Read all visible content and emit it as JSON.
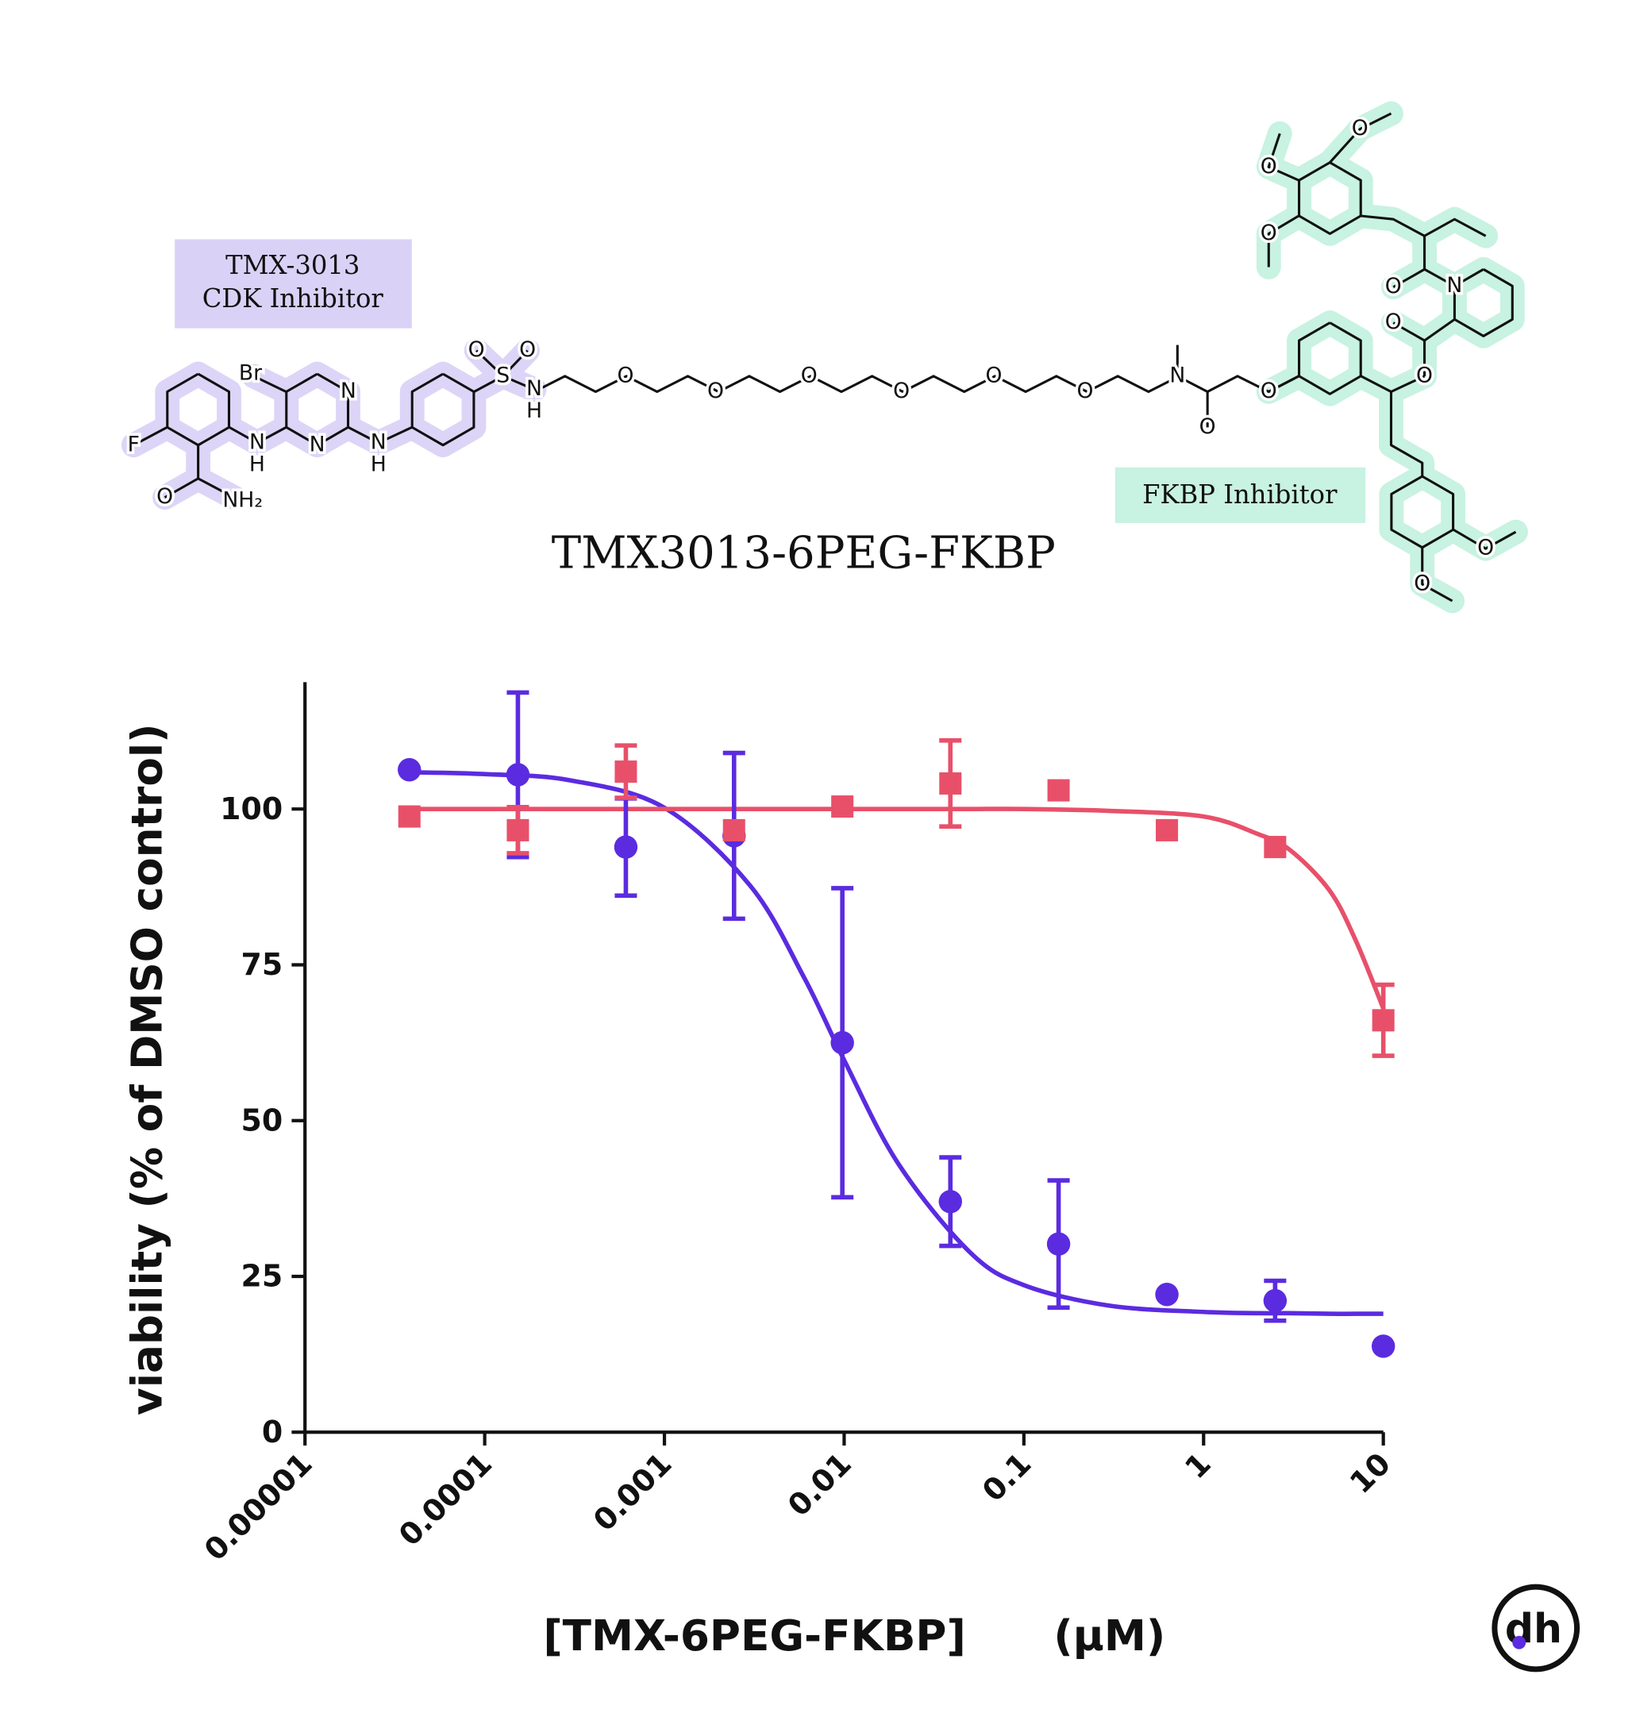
{
  "structure": {
    "name": "TMX3013-6PEG-FKBP",
    "cdk_label": [
      "TMX-3013",
      "CDK Inhibitor"
    ],
    "fkbp_label": "FKBP Inhibitor",
    "atoms": [
      "F",
      "O",
      "NH₂",
      "Br",
      "N",
      "H",
      "N",
      "N",
      "N",
      "H",
      "S",
      "O",
      "O",
      "N",
      "H",
      "O",
      "O",
      "O",
      "O",
      "O",
      "O",
      "N",
      "O",
      "O",
      "O",
      "O",
      "N",
      "O",
      "O",
      "O",
      "O",
      "O",
      "O"
    ]
  },
  "chart_data": {
    "type": "scatter",
    "x": [
      3.81e-05,
      0.000153,
      0.00061,
      0.00244,
      0.00977,
      0.039,
      0.156,
      0.625,
      2.5,
      10
    ],
    "series": [
      {
        "color": "#5b2be0",
        "marker": "circle",
        "values": [
          106.3,
          105.5,
          93.9,
          95.7,
          62.5,
          37,
          30.2,
          22.1,
          21.1,
          13.8
        ],
        "errors": [
          null,
          13.2,
          7.8,
          13.3,
          24.8,
          7.1,
          10.2,
          null,
          3.2,
          null
        ],
        "fit": [
          105.9,
          105.6,
          104.6,
          100.2,
          87.7,
          72.9,
          59.7,
          43.1,
          28.9,
          23.6,
          20.3,
          19.3,
          19.1,
          19.1,
          19.0,
          19.0,
          19.0
        ]
      },
      {
        "color": "#e8506a",
        "marker": "square",
        "values": [
          98.8,
          96.6,
          106,
          96.6,
          100.4,
          104.1,
          103,
          96.6,
          93.9,
          66.1
        ],
        "errors": [
          null,
          3.7,
          4.2,
          null,
          null,
          6.9,
          null,
          null,
          null,
          5.7
        ],
        "fit": [
          100,
          100,
          100,
          100,
          100,
          100,
          100,
          100,
          100,
          100,
          99.7,
          98.8,
          96,
          93.5,
          87,
          79,
          68
        ]
      }
    ],
    "fit_x": [
      3.81e-05,
      0.0001,
      0.0003,
      0.001,
      0.003,
      0.006,
      0.01,
      0.02,
      0.05,
      0.1,
      0.3,
      1,
      2,
      3,
      5,
      7,
      10
    ],
    "xscale": "log",
    "xlim": [
      1e-05,
      10
    ],
    "xticks": [
      1e-05,
      0.0001,
      0.001,
      0.01,
      0.1,
      1,
      10
    ],
    "ylim": [
      0,
      120
    ],
    "yticks": [
      0,
      25,
      50,
      75,
      100
    ],
    "x_label": "[TMX-6PEG-FKBP]",
    "x_unit": "(µM)",
    "y_label": "viability (% of DMSO control)"
  },
  "logo": "dh"
}
